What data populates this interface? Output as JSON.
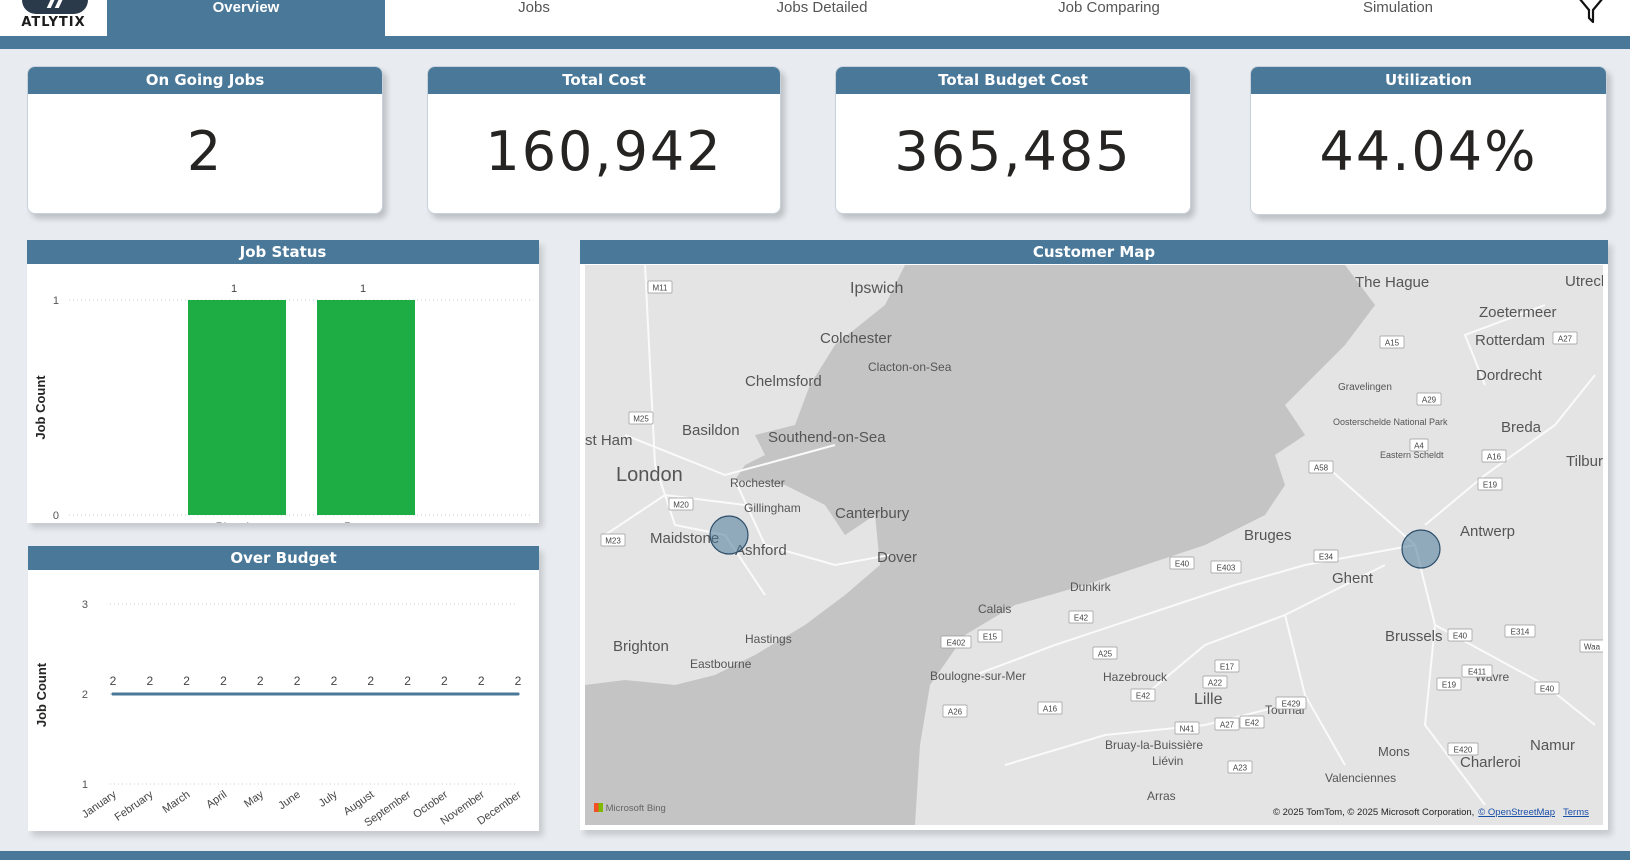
{
  "brand": {
    "logo_text": "ATLYTIX"
  },
  "nav": {
    "tabs": [
      {
        "label": "Overview",
        "active": true
      },
      {
        "label": "Jobs",
        "active": false
      },
      {
        "label": "Jobs Detailed",
        "active": false
      },
      {
        "label": "Job Comparing",
        "active": false
      },
      {
        "label": "Simulation",
        "active": false
      }
    ],
    "right_icon": "filter-icon"
  },
  "kpis": [
    {
      "title": "On Going Jobs",
      "value": "2"
    },
    {
      "title": "Total Cost",
      "value": "160,942"
    },
    {
      "title": "Total Budget Cost",
      "value": "365,485"
    },
    {
      "title": "Utilization",
      "value": "44.04%"
    }
  ],
  "colors": {
    "accent": "#4a7899",
    "bar": "#1ead45",
    "line": "#4a7899",
    "map_water": "#c4c4c4",
    "map_land": "#e4e4e4"
  },
  "chart_data": [
    {
      "type": "bar",
      "title": "Job Status",
      "categories": [
        "Planning",
        "Progress"
      ],
      "values": [
        1,
        1
      ],
      "ylabel": "Job Count",
      "ylim": [
        0,
        1
      ],
      "yticks": [
        0,
        1
      ],
      "grid": true
    },
    {
      "type": "line",
      "title": "Over Budget",
      "categories": [
        "January",
        "February",
        "March",
        "April",
        "May",
        "June",
        "July",
        "August",
        "September",
        "October",
        "November",
        "December"
      ],
      "values": [
        2,
        2,
        2,
        2,
        2,
        2,
        2,
        2,
        2,
        2,
        2,
        2
      ],
      "ylabel": "Job Count",
      "ylim": [
        1,
        3
      ],
      "yticks": [
        1,
        2,
        3
      ],
      "grid": true
    }
  ],
  "map": {
    "title": "Customer Map",
    "places": [
      "Ipswich",
      "Colchester",
      "Clacton-on-Sea",
      "Chelmsford",
      "Basildon",
      "st Ham",
      "Southend-on-Sea",
      "London",
      "Rochester",
      "Gillingham",
      "Canterbury",
      "Maidstone",
      "Ashford",
      "Dover",
      "Hastings",
      "Brighton",
      "Eastbourne",
      "Calais",
      "Dunkirk",
      "Boulogne-sur-Mer",
      "Hazebrouck",
      "Lille",
      "Tournai",
      "Bruay-la-Buissière",
      "Liévin",
      "Arras",
      "Valenciennes",
      "Mons",
      "Charleroi",
      "Namur",
      "Wavre",
      "Brussels",
      "Ghent",
      "Bruges",
      "Antwerp",
      "Breda",
      "Tilburg",
      "Dordrecht",
      "Rotterdam",
      "Zoetermeer",
      "The Hague",
      "Utrecht",
      "Gravelingen",
      "Oosterschelde National Park",
      "Eastern Scheldt"
    ],
    "road_labels": [
      "M11",
      "M25",
      "M20",
      "M23",
      "A15",
      "A27",
      "A29",
      "A58",
      "A4",
      "A16",
      "E19",
      "E34",
      "E40",
      "E403",
      "E42",
      "E402",
      "E15",
      "A25",
      "A26",
      "A16",
      "E17",
      "A22",
      "E42",
      "A27",
      "N41",
      "E42",
      "A23",
      "E429",
      "E40",
      "E411",
      "E19",
      "E314",
      "E40",
      "E420",
      "Waa"
    ],
    "markers": [
      {
        "name": "Maidstone area",
        "count": 1
      },
      {
        "name": "Antwerp area",
        "count": 1
      }
    ],
    "provider": "Microsoft Bing",
    "copyright": "© 2025 TomTom, © 2025 Microsoft Corporation,",
    "osm_link": "© OpenStreetMap",
    "terms_link": "Terms"
  }
}
